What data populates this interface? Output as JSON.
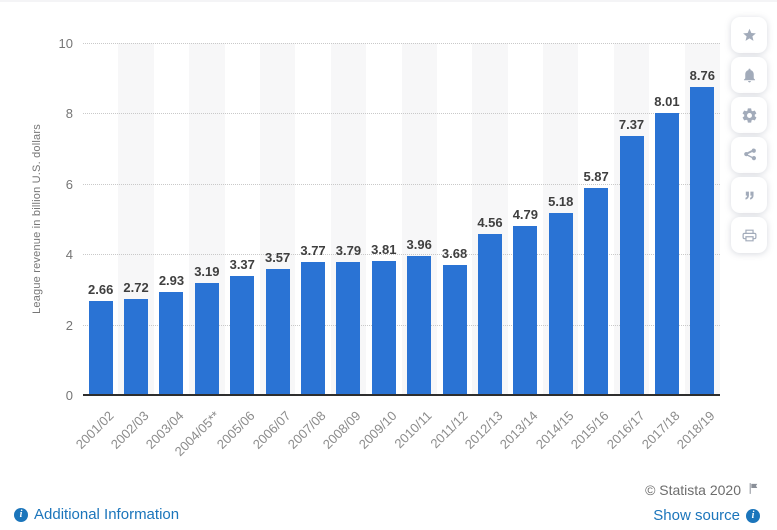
{
  "chart_data": {
    "type": "bar",
    "title": "",
    "categories": [
      "2001/02",
      "2002/03",
      "2003/04",
      "2004/05**",
      "2005/06",
      "2006/07",
      "2007/08",
      "2008/09",
      "2009/10",
      "2010/11",
      "2011/12",
      "2012/13",
      "2013/14",
      "2014/15",
      "2015/16",
      "2016/17",
      "2017/18",
      "2018/19"
    ],
    "values": [
      2.66,
      2.72,
      2.93,
      3.19,
      3.37,
      3.57,
      3.77,
      3.79,
      3.81,
      3.96,
      3.68,
      4.56,
      4.79,
      5.18,
      5.87,
      7.37,
      8.01,
      8.76
    ],
    "xlabel": "",
    "ylabel": "League revenue in billion U.S. dollars",
    "ylim": [
      0,
      10
    ],
    "yticks": [
      0,
      2,
      4,
      6,
      8,
      10
    ],
    "grid": "horizontal-dotted",
    "legend": "none",
    "bar_color": "#2a73d4",
    "band_color": "#f7f7f8"
  },
  "toolbar": {
    "items": [
      {
        "icon": "star-icon"
      },
      {
        "icon": "bell-icon"
      },
      {
        "icon": "gear-icon"
      },
      {
        "icon": "share-icon"
      },
      {
        "icon": "quote-icon"
      },
      {
        "icon": "printer-icon"
      }
    ]
  },
  "footer": {
    "additional_info_label": "Additional Information",
    "copyright": "© Statista 2020",
    "show_source_label": "Show source"
  },
  "colors": {
    "bar": "#2a73d4",
    "link": "#1b75bb",
    "axis_text": "#767676",
    "value_label": "#3f3f3f"
  }
}
